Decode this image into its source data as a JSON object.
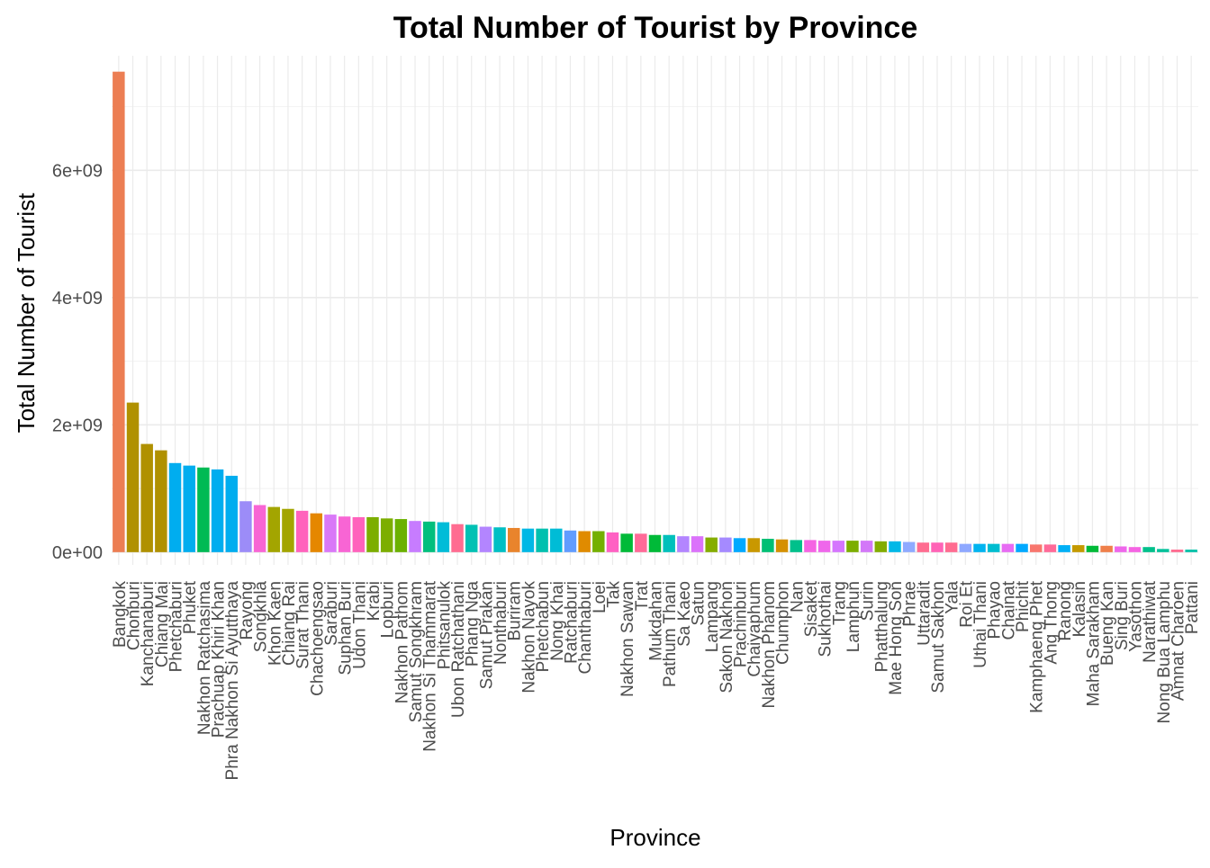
{
  "chart_data": {
    "type": "bar",
    "title": "Total Number of Tourist by Province",
    "xlabel": "Province",
    "ylabel": "Total Number of Tourist",
    "ylim": [
      -200000000,
      7800000000
    ],
    "yticks": [
      0,
      2000000000,
      4000000000,
      6000000000
    ],
    "ytick_labels": [
      "0e+00",
      "2e+09",
      "4e+09",
      "6e+09"
    ],
    "grid": true,
    "legend": "none",
    "categories": [
      "Bangkok",
      "Chonburi",
      "Kanchanaburi",
      "Chiang Mai",
      "Phetchaburi",
      "Phuket",
      "Nakhon Ratchasima",
      "Prachuap Khiri Khan",
      "Phra Nakhon Si Ayutthaya",
      "Rayong",
      "Songkhla",
      "Khon Kaen",
      "Chiang Rai",
      "Surat Thani",
      "Chachoengsao",
      "Saraburi",
      "Suphan Buri",
      "Udon Thani",
      "Krabi",
      "Lopburi",
      "Nakhon Pathom",
      "Samut Songkhram",
      "Nakhon Si Thammarat",
      "Phitsanulok",
      "Ubon Ratchathani",
      "Phang Nga",
      "Samut Prakan",
      "Nonthaburi",
      "Buriram",
      "Nakhon Nayok",
      "Phetchabun",
      "Nong Khai",
      "Ratchaburi",
      "Chanthaburi",
      "Loei",
      "Tak",
      "Nakhon Sawan",
      "Trat",
      "Mukdahan",
      "Pathum Thani",
      "Sa Kaeo",
      "Satun",
      "Lampang",
      "Sakon Nakhon",
      "Prachinburi",
      "Chaiyaphum",
      "Nakhon Phanom",
      "Chumphon",
      "Nan",
      "Sisaket",
      "Sukhothai",
      "Trang",
      "Lamphun",
      "Surin",
      "Phatthalung",
      "Mae Hong Son",
      "Phrae",
      "Uttaradit",
      "Samut Sakhon",
      "Yala",
      "Roi Et",
      "Uthai Thani",
      "Phayao",
      "Chainat",
      "Phichit",
      "Kamphaeng Phet",
      "Ang Thong",
      "Ranong",
      "Kalasin",
      "Maha Sarakham",
      "Bueng Kan",
      "Sing Buri",
      "Yasothon",
      "Narathiwat",
      "Nong Bua Lamphu",
      "Amnat Charoen",
      "Pattani"
    ],
    "values": [
      7550000000,
      2350000000,
      1700000000,
      1600000000,
      1400000000,
      1360000000,
      1330000000,
      1300000000,
      1200000000,
      800000000,
      740000000,
      710000000,
      680000000,
      650000000,
      610000000,
      590000000,
      560000000,
      550000000,
      550000000,
      530000000,
      520000000,
      490000000,
      480000000,
      470000000,
      440000000,
      430000000,
      400000000,
      390000000,
      380000000,
      370000000,
      370000000,
      370000000,
      340000000,
      330000000,
      330000000,
      310000000,
      290000000,
      290000000,
      270000000,
      270000000,
      250000000,
      250000000,
      230000000,
      230000000,
      220000000,
      220000000,
      210000000,
      200000000,
      190000000,
      190000000,
      180000000,
      180000000,
      180000000,
      180000000,
      170000000,
      170000000,
      160000000,
      150000000,
      150000000,
      150000000,
      130000000,
      130000000,
      130000000,
      130000000,
      130000000,
      120000000,
      120000000,
      110000000,
      110000000,
      100000000,
      100000000,
      90000000,
      80000000,
      80000000,
      50000000,
      40000000,
      40000000
    ],
    "colors": [
      "#EC7E53",
      "#B09100",
      "#B09100",
      "#B09100",
      "#00ADEF",
      "#00ADEF",
      "#00BA54",
      "#00ADEF",
      "#00ADEF",
      "#9C8CF8",
      "#F865D4",
      "#A3A500",
      "#A3A500",
      "#FF62BC",
      "#E58700",
      "#D978F8",
      "#F865D4",
      "#FF62BC",
      "#7CAE00",
      "#7CAE00",
      "#6BB100",
      "#C77CFF",
      "#00BF7D",
      "#00BCD8",
      "#FF6C91",
      "#00C1B4",
      "#B385FF",
      "#00BFC4",
      "#E9842C",
      "#00B8E5",
      "#00C0AF",
      "#00BCD6",
      "#619CFF",
      "#E08B00",
      "#74B000",
      "#FF61C3",
      "#00BA38",
      "#FF6A98",
      "#00BA38",
      "#00C0BB",
      "#B385FF",
      "#DB72FB",
      "#85AD00",
      "#A58AFF",
      "#00A9FF",
      "#C99800",
      "#00BF74",
      "#D59000",
      "#00C08B",
      "#F564E3",
      "#EF67EB",
      "#D575FE",
      "#7CAE00",
      "#D378F8",
      "#83AD00",
      "#00B8E7",
      "#8FAAFF",
      "#FF6C90",
      "#FF63B6",
      "#FF6C91",
      "#8EA8FF",
      "#00B4F0",
      "#00BDD0",
      "#E76BF3",
      "#00A9FF",
      "#F8766D",
      "#FF6A98",
      "#00B0F6",
      "#C49A00",
      "#00BA38",
      "#EF7F4A",
      "#EE67EB",
      "#F564E3",
      "#00C08B",
      "#00C19A",
      "#FF6C90",
      "#00C1A9"
    ]
  }
}
